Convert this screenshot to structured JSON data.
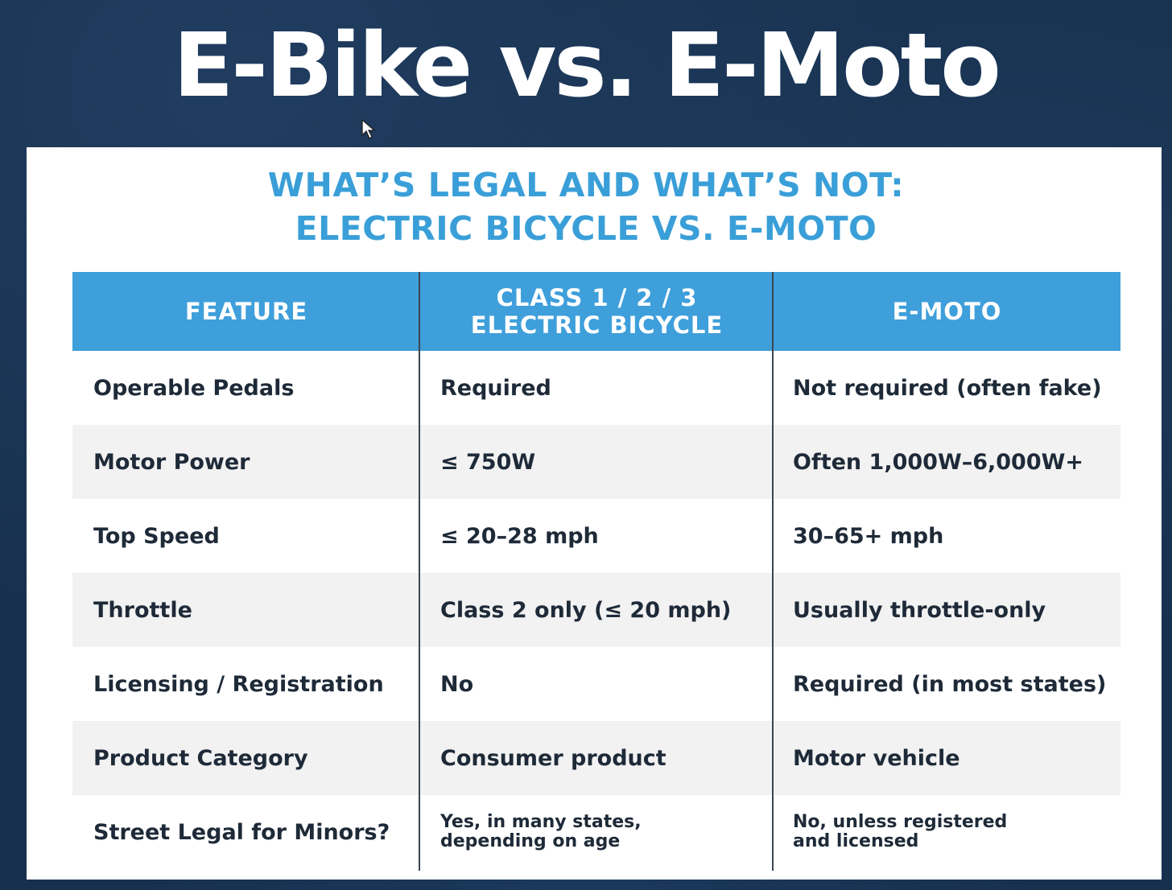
{
  "title": "E-Bike vs. E-Moto",
  "subtitle": {
    "line1": "WHAT’S LEGAL AND WHAT’S NOT:",
    "line2": "ELECTRIC BICYCLE VS. E-MOTO"
  },
  "table": {
    "headers": {
      "feature": "FEATURE",
      "ebike_line1": "CLASS 1 / 2 / 3",
      "ebike_line2": "ELECTRIC BICYCLE",
      "emoto": "E-MOTO"
    },
    "rows": [
      [
        "Operable Pedals",
        "Required",
        "Not required (often fake)"
      ],
      [
        "Motor Power",
        "≤ 750W",
        "Often 1,000W–6,000W+"
      ],
      [
        "Top Speed",
        "≤ 20–28 mph",
        "30–65+ mph"
      ],
      [
        "Throttle",
        "Class 2 only (≤ 20 mph)",
        "Usually throttle-only"
      ],
      [
        "Licensing / Registration",
        "No",
        "Required (in most states)"
      ],
      [
        "Product Category",
        "Consumer product",
        "Motor vehicle"
      ],
      [
        "Street Legal for Minors?",
        "Yes, in many states,\ndepending on age",
        "No, unless registered\nand licensed"
      ]
    ]
  },
  "colors": {
    "background": "#17304e",
    "header_blue": "#3e9fdb",
    "subtitle_blue": "#3a9fd8",
    "row_shade": "#f2f2f2"
  }
}
